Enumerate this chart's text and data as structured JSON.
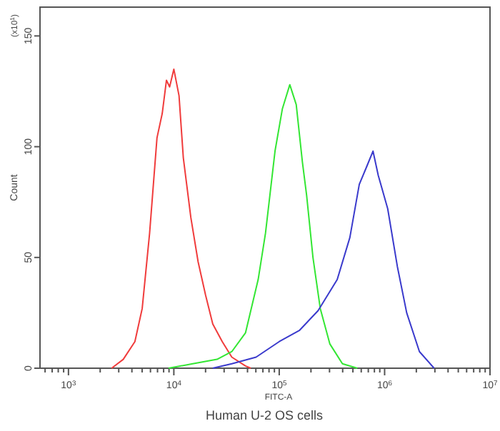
{
  "chart_data": {
    "type": "line",
    "ylabel": "Count",
    "xlabel": "FITC-A",
    "log": "x",
    "xlim": [
      537,
      10000000
    ],
    "ylim": [
      0,
      163
    ],
    "yticks": [
      0,
      50,
      100,
      150
    ],
    "xticks": [
      {
        "value": 600,
        "label": null
      },
      {
        "value": 700,
        "label": null
      },
      {
        "value": 800,
        "label": null
      },
      {
        "value": 900,
        "label": null
      },
      {
        "value": 1000,
        "label": "10$^{3}$"
      },
      {
        "value": 2000,
        "label": null
      },
      {
        "value": 3000,
        "label": null
      },
      {
        "value": 4000,
        "label": null
      },
      {
        "value": 5000,
        "label": null
      },
      {
        "value": 6000,
        "label": null
      },
      {
        "value": 7000,
        "label": null
      },
      {
        "value": 8000,
        "label": null
      },
      {
        "value": 9000,
        "label": null
      },
      {
        "value": 10000,
        "label": "10$^{4}$"
      },
      {
        "value": 20000,
        "label": null
      },
      {
        "value": 30000,
        "label": null
      },
      {
        "value": 40000,
        "label": null
      },
      {
        "value": 50000,
        "label": null
      },
      {
        "value": 60000,
        "label": null
      },
      {
        "value": 70000,
        "label": null
      },
      {
        "value": 80000,
        "label": null
      },
      {
        "value": 90000,
        "label": null
      },
      {
        "value": 100000,
        "label": "10$^{5}$"
      },
      {
        "value": 200000,
        "label": null
      },
      {
        "value": 300000,
        "label": null
      },
      {
        "value": 400000,
        "label": null
      },
      {
        "value": 500000,
        "label": null
      },
      {
        "value": 600000,
        "label": null
      },
      {
        "value": 700000,
        "label": null
      },
      {
        "value": 800000,
        "label": null
      },
      {
        "value": 900000,
        "label": null
      },
      {
        "value": 1000000,
        "label": "10$^{6}$"
      },
      {
        "value": 2000000,
        "label": null
      },
      {
        "value": 3000000,
        "label": null
      },
      {
        "value": 4000000,
        "label": null
      },
      {
        "value": 5000000,
        "label": null
      },
      {
        "value": 6000000,
        "label": null
      },
      {
        "value": 7000000,
        "label": null
      },
      {
        "value": 8000000,
        "label": null
      },
      {
        "value": 9000000,
        "label": null
      },
      {
        "value": 10000000,
        "label": "10$^{7}$"
      }
    ],
    "grid": false,
    "marker": "none",
    "line_style": "solid",
    "annotations": [
      "(x10$^{1}$)",
      "Human U-2 OS cells"
    ],
    "series": [
      {
        "color": "#f03c3c",
        "x": [
          2570,
          3310,
          4270,
          5010,
          5890,
          6920,
          7760,
          8510,
          9120,
          10000,
          11200,
          12300,
          14500,
          17000,
          20000,
          23400,
          28800,
          35500,
          47900,
          53700
        ],
        "values": [
          0,
          4,
          12,
          27,
          61,
          104,
          115,
          130,
          127,
          135,
          123,
          95,
          68,
          48,
          33,
          20,
          12,
          5,
          1,
          0
        ]
      },
      {
        "color": "#33e633",
        "x": [
          8910,
          15100,
          25700,
          35500,
          47900,
          63100,
          74100,
          91200,
          107000,
          126000,
          145000,
          166000,
          182000,
          209000,
          245000,
          302000,
          398000,
          550000
        ],
        "values": [
          0,
          2,
          4,
          7.5,
          16,
          40,
          61,
          98,
          117,
          128,
          119,
          93,
          78,
          50,
          27,
          11,
          2,
          0
        ]
      },
      {
        "color": "#3a3acc",
        "x": [
          23400,
          35500,
          60300,
          100000,
          155000,
          234000,
          355000,
          468000,
          575000,
          676000,
          776000,
          871000,
          1070000,
          1320000,
          1620000,
          2140000,
          2950000
        ],
        "values": [
          0,
          2,
          5,
          12,
          17,
          26,
          40,
          59,
          83,
          91,
          98,
          87,
          72,
          46,
          25,
          7.5,
          0
        ]
      }
    ]
  }
}
